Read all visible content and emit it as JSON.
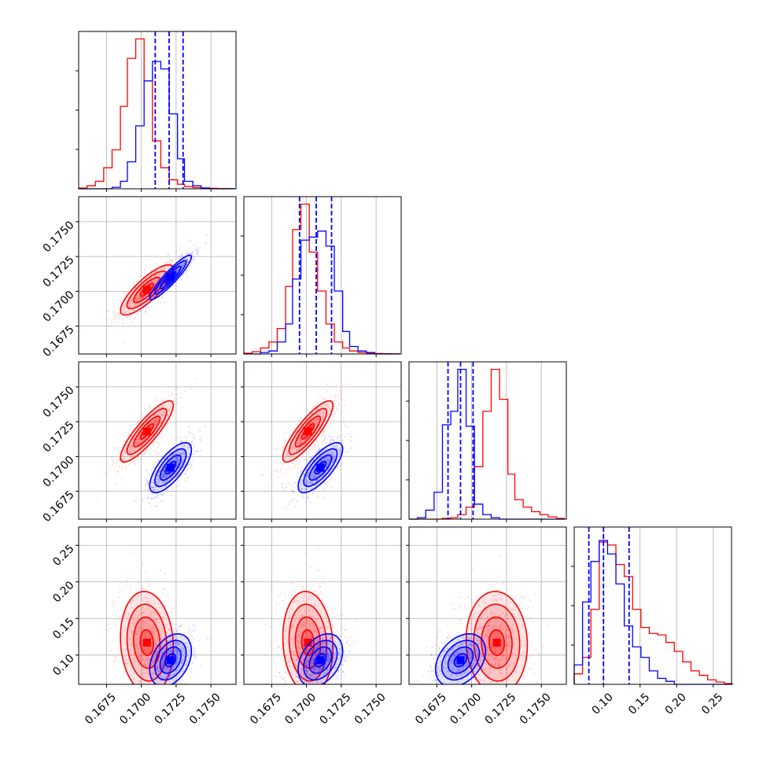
{
  "colors": {
    "red": "#ff0000",
    "blue": "#0000ff",
    "grid": "#b0b0b0",
    "frame": "#000000"
  },
  "chart_data": {
    "type": "corner",
    "grid": true,
    "n_params": 4,
    "axis_ranges": [
      [
        0.1655,
        0.1768
      ],
      [
        0.1655,
        0.1768
      ],
      [
        0.1655,
        0.1768
      ],
      [
        0.06,
        0.275
      ]
    ],
    "x_ticks": [
      [
        "0.1675",
        "0.1700",
        "0.1725",
        "0.1750"
      ],
      [
        "0.1675",
        "0.1700",
        "0.1725",
        "0.1750"
      ],
      [
        "0.1675",
        "0.1700",
        "0.1725",
        "0.1750"
      ],
      [
        "0.10",
        "0.15",
        "0.20",
        "0.25"
      ]
    ],
    "y_ticks": [
      null,
      [
        "0.1675",
        "0.1700",
        "0.1725",
        "0.1750"
      ],
      [
        "0.1675",
        "0.1700",
        "0.1725",
        "0.1750"
      ],
      [
        "0.10",
        "0.15",
        "0.20",
        "0.25"
      ]
    ],
    "series": [
      {
        "color": "red",
        "means": [
          0.1704,
          0.1701,
          0.1718,
          0.117
        ],
        "sds": [
          0.00095,
          0.0009,
          0.0011,
          0.035
        ],
        "cov_offdiag": {
          "1-0": 0.82,
          "2-0": 0.86,
          "2-1": 0.85,
          "3-0": -0.1,
          "3-1": -0.1,
          "3-2": -0.05
        }
      },
      {
        "color": "blue",
        "means": [
          0.1721,
          0.171,
          0.1692,
          0.093
        ],
        "sds": [
          0.00075,
          0.0008,
          0.0009,
          0.018
        ],
        "cov_offdiag": {
          "1-0": 0.92,
          "2-0": 0.72,
          "2-1": 0.75,
          "3-0": 0.35,
          "3-1": 0.35,
          "3-2": 0.35
        }
      }
    ],
    "diagonal_histograms": [
      {
        "param": 0,
        "bin_edges": [
          0.1655,
          0.1661,
          0.1667,
          0.1673,
          0.1679,
          0.1685,
          0.169,
          0.1696,
          0.1702,
          0.1708,
          0.1714,
          0.172,
          0.1726,
          0.1731,
          0.1737,
          0.1743,
          0.1749,
          0.1755,
          0.1761,
          0.1767
        ],
        "red": [
          0.005,
          0.02,
          0.05,
          0.14,
          0.26,
          0.55,
          0.87,
          1.0,
          0.72,
          0.32,
          0.14,
          0.06,
          0.03,
          0.015,
          0.008,
          0.005,
          0.003,
          0.002,
          0.001
        ],
        "blue": [
          0.0,
          0.0,
          0.0,
          0.0,
          0.01,
          0.05,
          0.18,
          0.42,
          0.72,
          0.85,
          0.8,
          0.5,
          0.2,
          0.05,
          0.02,
          0.005,
          0.0,
          0.0,
          0.0
        ],
        "quantiles_blue": [
          0.171,
          0.172,
          0.173
        ]
      },
      {
        "param": 1,
        "bin_edges": [
          0.1655,
          0.1661,
          0.1667,
          0.1673,
          0.1679,
          0.1685,
          0.169,
          0.1696,
          0.1702,
          0.1708,
          0.1714,
          0.172,
          0.1726,
          0.1731,
          0.1737,
          0.1743,
          0.1749,
          0.1755,
          0.1761,
          0.1767
        ],
        "red": [
          0.005,
          0.015,
          0.04,
          0.08,
          0.17,
          0.45,
          0.83,
          1.0,
          0.68,
          0.42,
          0.2,
          0.08,
          0.04,
          0.02,
          0.01,
          0.005,
          0.003,
          0.002,
          0.001
        ],
        "blue": [
          0.0,
          0.0,
          0.01,
          0.02,
          0.08,
          0.2,
          0.5,
          0.76,
          0.78,
          0.82,
          0.72,
          0.42,
          0.15,
          0.05,
          0.02,
          0.01,
          0.0,
          0.0,
          0.0
        ],
        "quantiles_blue": [
          0.1695,
          0.1707,
          0.1718
        ]
      },
      {
        "param": 2,
        "bin_edges": [
          0.1655,
          0.1661,
          0.1667,
          0.1673,
          0.1679,
          0.1685,
          0.169,
          0.1696,
          0.1702,
          0.1708,
          0.1714,
          0.172,
          0.1726,
          0.1731,
          0.1737,
          0.1743,
          0.1749,
          0.1755,
          0.1761,
          0.1767
        ],
        "red": [
          0.0,
          0.0,
          0.0,
          0.0,
          0.005,
          0.01,
          0.03,
          0.08,
          0.35,
          0.72,
          1.0,
          0.8,
          0.3,
          0.13,
          0.08,
          0.05,
          0.03,
          0.015,
          0.005
        ],
        "blue": [
          0.0,
          0.01,
          0.06,
          0.18,
          0.63,
          0.72,
          1.0,
          0.62,
          0.1,
          0.03,
          0.01,
          0.0,
          0.0,
          0.0,
          0.0,
          0.0,
          0.0,
          0.0,
          0.0
        ],
        "quantiles_blue": [
          0.1683,
          0.1692,
          0.1701
        ]
      },
      {
        "param": 3,
        "bin_edges": [
          0.06,
          0.0714,
          0.0828,
          0.0942,
          0.1056,
          0.117,
          0.1284,
          0.1398,
          0.1512,
          0.1626,
          0.174,
          0.1854,
          0.1968,
          0.2082,
          0.2196,
          0.231,
          0.2424,
          0.2538,
          0.2652,
          0.2766
        ],
        "red": [
          0.07,
          0.18,
          0.5,
          0.95,
          0.93,
          0.8,
          0.72,
          0.5,
          0.38,
          0.34,
          0.33,
          0.28,
          0.22,
          0.15,
          0.09,
          0.06,
          0.03,
          0.015,
          0.005
        ],
        "blue": [
          0.13,
          0.55,
          0.82,
          0.96,
          0.87,
          0.67,
          0.39,
          0.25,
          0.18,
          0.09,
          0.04,
          0.02,
          0.0,
          0.0,
          0.0,
          0.0,
          0.0,
          0.0,
          0.0
        ],
        "quantiles_blue": [
          0.08,
          0.1,
          0.135
        ]
      }
    ]
  }
}
